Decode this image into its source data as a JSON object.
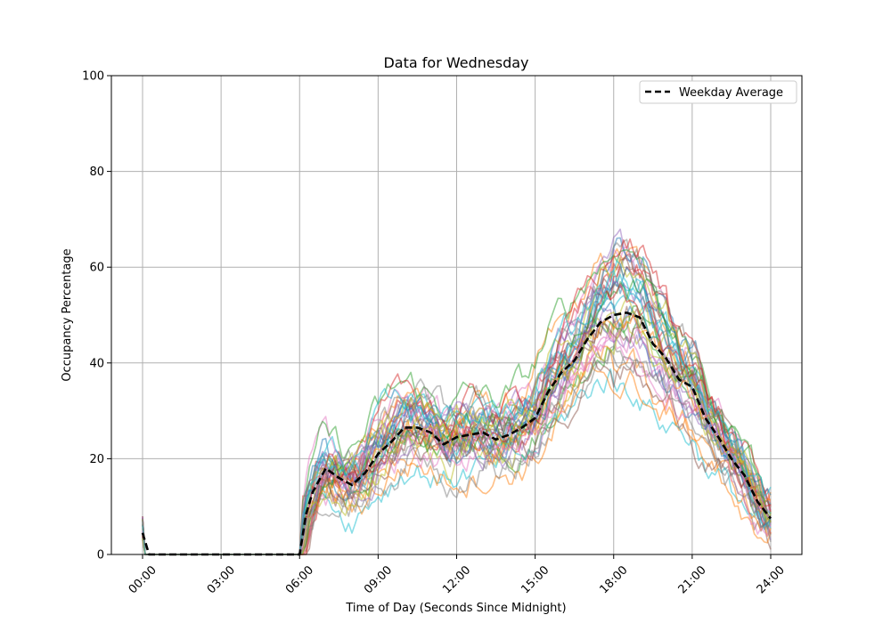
{
  "chart_data": {
    "type": "line",
    "title": "Data for Wednesday",
    "xlabel": "Time of Day (Seconds Since Midnight)",
    "ylabel": "Occupancy Percentage",
    "xlim_hours": [
      -0.8,
      25.5
    ],
    "ylim": [
      0,
      100
    ],
    "x_ticks": [
      {
        "hour": 0,
        "label": "00:00"
      },
      {
        "hour": 3,
        "label": "03:00"
      },
      {
        "hour": 6,
        "label": "06:00"
      },
      {
        "hour": 9,
        "label": "09:00"
      },
      {
        "hour": 12,
        "label": "12:00"
      },
      {
        "hour": 15,
        "label": "15:00"
      },
      {
        "hour": 18,
        "label": "18:00"
      },
      {
        "hour": 21,
        "label": "21:00"
      },
      {
        "hour": 24,
        "label": "24:00"
      }
    ],
    "y_ticks": [
      0,
      20,
      40,
      60,
      80,
      100
    ],
    "grid": true,
    "legend": {
      "position": "top-right",
      "entries": [
        {
          "label": "Weekday Average",
          "style": "dashed",
          "color": "#000000"
        }
      ]
    },
    "x_hours": [
      0,
      0.25,
      6,
      6.25,
      6.5,
      7,
      7.5,
      8,
      8.5,
      9,
      9.5,
      10,
      10.5,
      11,
      11.5,
      12,
      12.5,
      13,
      13.5,
      14,
      14.5,
      15,
      15.5,
      16,
      16.5,
      17,
      17.5,
      18,
      18.5,
      19,
      19.5,
      20,
      20.5,
      21,
      21.5,
      22,
      22.5,
      23,
      23.5,
      24
    ],
    "average": [
      4.5,
      0,
      0,
      8.5,
      13,
      18,
      16,
      14.5,
      17,
      21,
      23.5,
      26.5,
      26.5,
      25.5,
      23,
      24.5,
      25,
      25.5,
      24,
      25,
      26.5,
      28.5,
      34,
      38,
      40.5,
      45,
      48.5,
      50,
      50.5,
      49.5,
      44,
      41,
      36.5,
      35,
      28.5,
      24.5,
      20,
      16.5,
      11,
      7.5
    ],
    "series_colors": [
      "#1f77b4",
      "#ff7f0e",
      "#2ca02c",
      "#d62728",
      "#9467bd",
      "#8c564b",
      "#e377c2",
      "#7f7f7f",
      "#bcbd22",
      "#17becf"
    ],
    "individual_series_count": 40
  }
}
